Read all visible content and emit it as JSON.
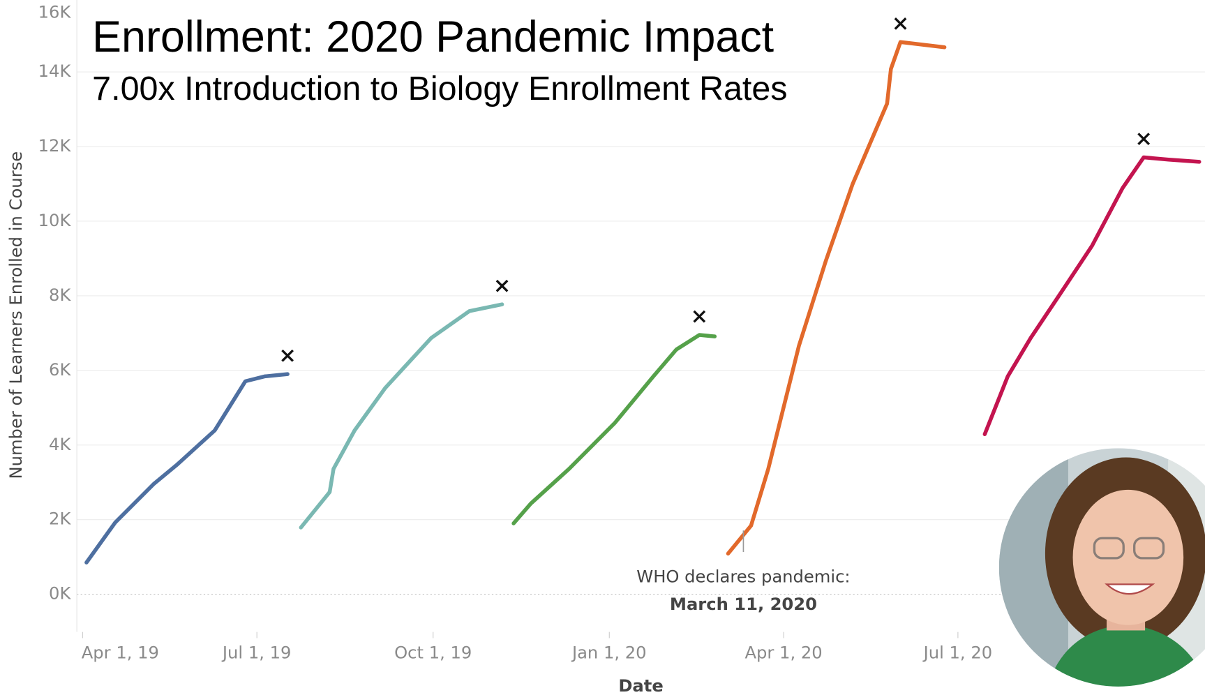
{
  "chart_data": {
    "type": "line",
    "title": "Enrollment: 2020 Pandemic Impact",
    "subtitle": "7.00x Introduction to Biology Enrollment Rates",
    "x_label": "Date",
    "y_label": "Number of Learners Enrolled in Course",
    "xlim": [
      "2019-03-29",
      "2020-11-07"
    ],
    "xticks": [
      {
        "value": "2019-04-01",
        "label": "Apr 1, 19"
      },
      {
        "value": "2019-07-01",
        "label": "Jul 1, 19"
      },
      {
        "value": "2019-10-01",
        "label": "Oct 1, 19"
      },
      {
        "value": "2020-01-01",
        "label": "Jan 1, 20"
      },
      {
        "value": "2020-04-01",
        "label": "Apr 1, 20"
      },
      {
        "value": "2020-07-01",
        "label": "Jul 1, 20"
      }
    ],
    "ylim": [
      -1000,
      16000
    ],
    "yticks": [
      {
        "value": 0,
        "label": "0K"
      },
      {
        "value": 2000,
        "label": "2K"
      },
      {
        "value": 4000,
        "label": "4K"
      },
      {
        "value": 6000,
        "label": "6K"
      },
      {
        "value": 8000,
        "label": "8K"
      },
      {
        "value": 10000,
        "label": "10K"
      },
      {
        "value": 12000,
        "label": "12K"
      },
      {
        "value": 14000,
        "label": "14K"
      },
      {
        "value": 16000,
        "label": "16K"
      }
    ],
    "grid": true,
    "series": [
      {
        "color": "#4e6fa0",
        "x": [
          "2019-04-03",
          "2019-04-18",
          "2019-05-08",
          "2019-05-20",
          "2019-06-09",
          "2019-06-25",
          "2019-07-05",
          "2019-07-17"
        ],
        "values": [
          850,
          1920,
          2950,
          3460,
          4390,
          5710,
          5840,
          5900
        ]
      },
      {
        "color": "#7ab8b2",
        "x": [
          "2019-07-24",
          "2019-08-08",
          "2019-08-10",
          "2019-08-21",
          "2019-09-06",
          "2019-09-30",
          "2019-10-20",
          "2019-11-06"
        ],
        "values": [
          1790,
          2740,
          3360,
          4390,
          5530,
          6870,
          7590,
          7770
        ]
      },
      {
        "color": "#55a14a",
        "x": [
          "2019-11-12",
          "2019-11-21",
          "2019-12-11",
          "2020-01-04",
          "2020-01-24",
          "2020-02-05",
          "2020-02-17",
          "2020-02-25"
        ],
        "values": [
          1900,
          2430,
          3360,
          4600,
          5840,
          6560,
          6950,
          6910
        ]
      },
      {
        "color": "#e2692b",
        "x": [
          "2020-03-03",
          "2020-03-15",
          "2020-03-24",
          "2020-04-09",
          "2020-04-23",
          "2020-05-07",
          "2020-05-25",
          "2020-05-27",
          "2020-06-01",
          "2020-06-24"
        ],
        "values": [
          1090,
          1840,
          3360,
          6660,
          8930,
          10990,
          13150,
          14080,
          14800,
          14660
        ]
      },
      {
        "color": "#c3144f",
        "x": [
          "2020-07-15",
          "2020-07-27",
          "2020-08-08",
          "2020-08-24",
          "2020-09-09",
          "2020-09-25",
          "2020-10-06",
          "2020-10-19",
          "2020-11-04"
        ],
        "values": [
          4290,
          5840,
          6870,
          8100,
          9340,
          10890,
          11710,
          11650,
          11590
        ]
      }
    ],
    "annotation": {
      "text": "WHO declares pandemic:",
      "date_label": "March 11, 2020",
      "x": "2020-03-11"
    }
  }
}
